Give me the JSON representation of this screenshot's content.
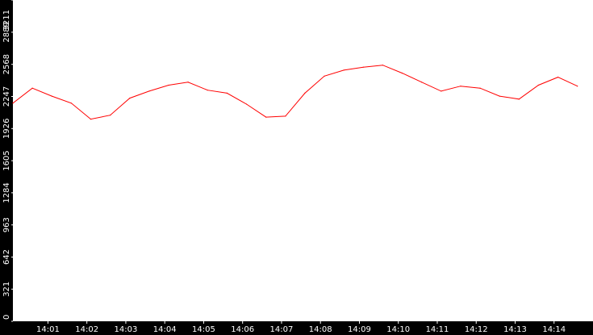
{
  "chart_data": {
    "type": "line",
    "title": "",
    "xlabel": "",
    "ylabel": "",
    "ylim": [
      0,
      3211
    ],
    "yticks": [
      0,
      321,
      642,
      963,
      1284,
      1605,
      1926,
      2247,
      2568,
      2889,
      3211
    ],
    "xlim": [
      "14:00:06",
      "14:15:00"
    ],
    "xticks": [
      "14:01",
      "14:02",
      "14:03",
      "14:04",
      "14:05",
      "14:06",
      "14:07",
      "14:08",
      "14:09",
      "14:10",
      "14:11",
      "14:12",
      "14:13",
      "14:14"
    ],
    "grid": false,
    "legend": "none",
    "colors": {
      "line": "#ff0000",
      "background": "#ffffff",
      "axes": "#000000",
      "tick_text": "#ffffff"
    },
    "series": [
      {
        "x_start": "14:00:06",
        "x_step_seconds": 30,
        "values": [
          2180,
          2330,
          2250,
          2180,
          2020,
          2060,
          2230,
          2300,
          2360,
          2390,
          2310,
          2280,
          2170,
          2040,
          2050,
          2280,
          2450,
          2510,
          2540,
          2560,
          2480,
          2390,
          2300,
          2350,
          2330,
          2250,
          2220,
          2360,
          2440,
          2350
        ]
      }
    ]
  }
}
